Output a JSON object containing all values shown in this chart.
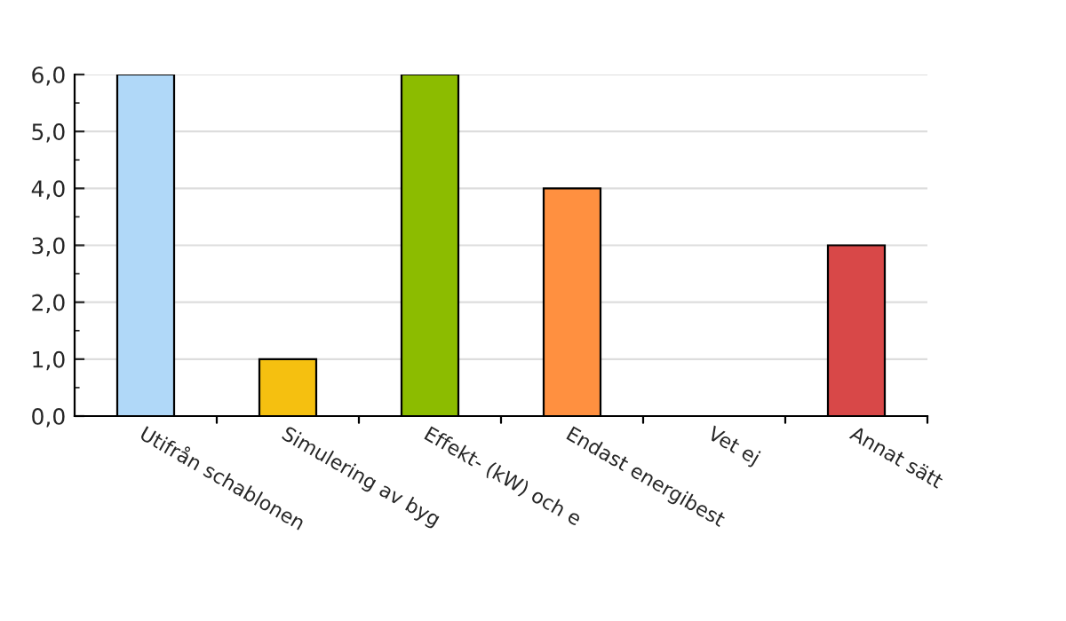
{
  "chart_data": {
    "type": "bar",
    "categories": [
      "Utifrån schablonen",
      "Simulering av byg",
      "Effekt- (kW) och e",
      "Endast energibest",
      "Vet ej",
      "Annat sätt"
    ],
    "values": [
      6,
      1,
      6,
      4,
      null,
      3
    ],
    "colors": [
      "#b0d8f8",
      "#f5c010",
      "#8cbc00",
      "#ff9040",
      null,
      "#d84848"
    ],
    "ylim": [
      0,
      6
    ],
    "yticks": [
      {
        "value": 0,
        "label": "0,0"
      },
      {
        "value": 1,
        "label": "1,0"
      },
      {
        "value": 2,
        "label": "2,0"
      },
      {
        "value": 3,
        "label": "3,0"
      },
      {
        "value": 4,
        "label": "4,0"
      },
      {
        "value": 5,
        "label": "5,0"
      },
      {
        "value": 6,
        "label": "6,0"
      }
    ],
    "grid": "y"
  }
}
